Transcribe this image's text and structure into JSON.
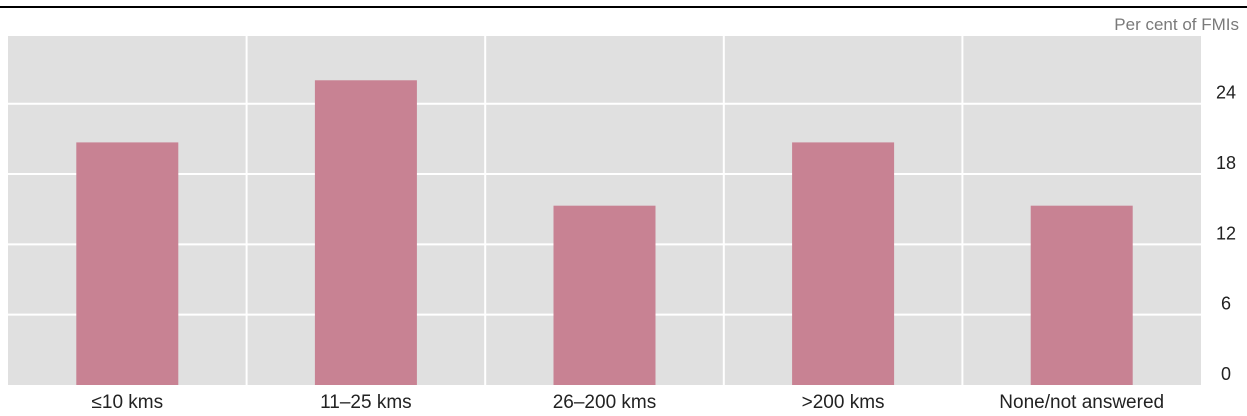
{
  "chart_data": {
    "type": "bar",
    "unit_label": "Per cent of FMIs",
    "categories": [
      "≤10 kms",
      "11–25 kms",
      "26–200 kms",
      ">200 kms",
      "None/not answered"
    ],
    "values": [
      20.7,
      26.0,
      15.3,
      20.7,
      15.3
    ],
    "ylim": [
      0,
      30
    ],
    "yticks": [
      0,
      6,
      12,
      18,
      24
    ],
    "grid": true,
    "y_axis_side": "right",
    "colors": {
      "bar": "#c88293",
      "plot_background": "#e0e0e0",
      "gridline": "#ffffff",
      "top_rule": "#000000"
    }
  }
}
